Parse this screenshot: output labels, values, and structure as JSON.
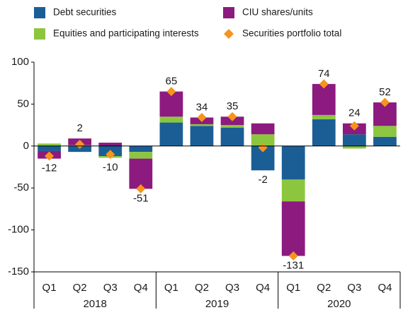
{
  "chart_data": {
    "type": "bar",
    "stacked": true,
    "categories": [
      "Q1",
      "Q2",
      "Q3",
      "Q4",
      "Q1",
      "Q2",
      "Q3",
      "Q4",
      "Q1",
      "Q2",
      "Q3",
      "Q4"
    ],
    "years": [
      "2018",
      "2019",
      "2020"
    ],
    "series": [
      {
        "name": "Debt securities",
        "color": "#1b5e95",
        "values": [
          -6,
          -7,
          -12,
          -7,
          28,
          24,
          22,
          -29,
          -40,
          32,
          14,
          11
        ]
      },
      {
        "name": "Equities and participating interests",
        "color": "#8cc63f",
        "values": [
          3,
          1,
          -2,
          -8,
          7,
          2,
          3,
          14,
          -26,
          5,
          -3,
          13
        ]
      },
      {
        "name": "CIU shares/units",
        "color": "#8c1a7f",
        "values": [
          -9,
          8,
          4,
          -36,
          30,
          8,
          10,
          13,
          -65,
          37,
          13,
          28
        ]
      }
    ],
    "total": {
      "name": "Securities portfolio total",
      "color": "#f7941d",
      "values": [
        -12,
        2,
        -10,
        -51,
        65,
        34,
        35,
        -2,
        -131,
        74,
        24,
        52
      ]
    },
    "ylim": [
      -150,
      100
    ],
    "yticks": [
      -150,
      -100,
      -50,
      0,
      50,
      100
    ]
  }
}
